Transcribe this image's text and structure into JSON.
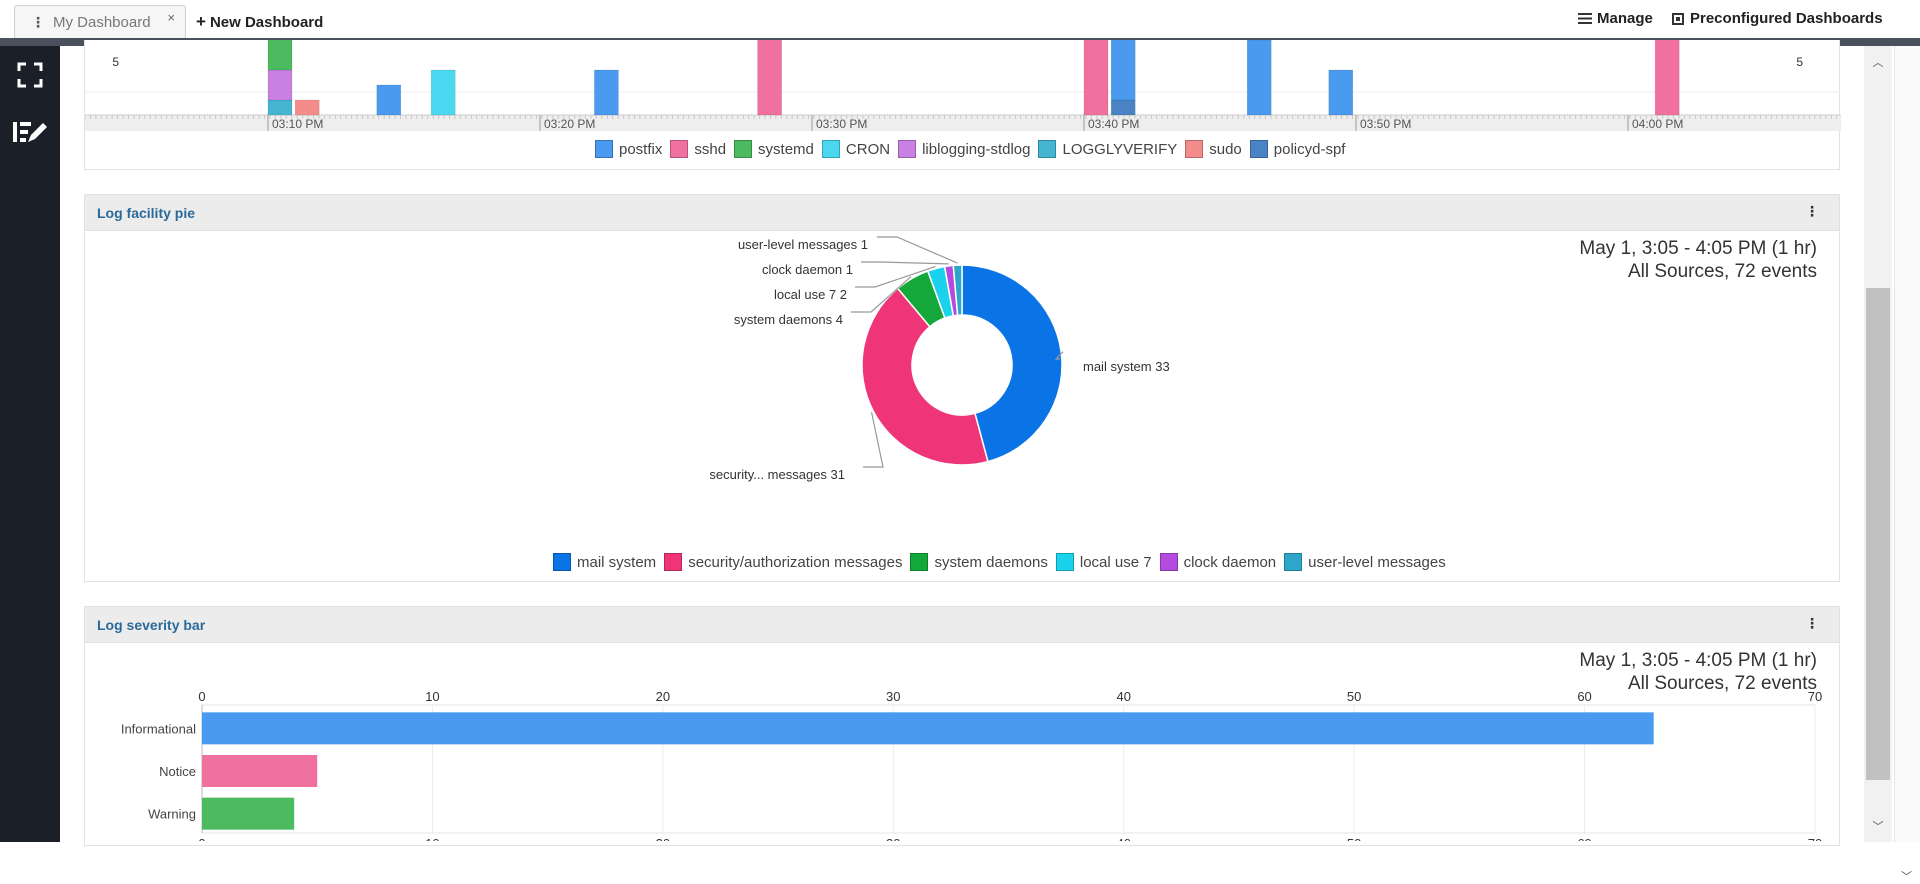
{
  "tabs": {
    "my_dashboard": "My Dashboard",
    "close_glyph": "×",
    "new_dashboard": "New Dashboard",
    "new_plus": "+"
  },
  "header": {
    "manage": "Manage",
    "preconfigured": "Preconfigured Dashboards"
  },
  "sidebar": {
    "items": [
      {
        "icon": "fullscreen-icon"
      },
      {
        "icon": "edit-dashboard-icon"
      }
    ]
  },
  "colors": {
    "postfix": "#4a9af0",
    "sshd": "#f0709f",
    "systemd": "#4cbb5f",
    "CRON": "#49d8ef",
    "liblogging-stdlog": "#c880e2",
    "LOGGLYVERIFY": "#45b5d2",
    "sudo": "#f58c8c",
    "policyd-spf": "#4a83c4",
    "mail": "#0a74e6",
    "security": "#ef3577",
    "sysd": "#14a83a",
    "local7": "#1ad2eb",
    "clock": "#b44bde",
    "user": "#2da6c9"
  },
  "timeline_panel": {
    "y_tick_left": "5",
    "y_tick_right": "5",
    "x_ticks": [
      "03:10 PM",
      "03:20 PM",
      "03:30 PM",
      "03:40 PM",
      "03:50 PM",
      "04:00 PM"
    ],
    "legend": [
      "postfix",
      "sshd",
      "systemd",
      "CRON",
      "liblogging-stdlog",
      "LOGGLYVERIFY",
      "sudo",
      "policyd-spf"
    ]
  },
  "pie_panel": {
    "title": "Log facility pie",
    "meta_line1": "May 1, 3:05 - 4:05 PM  (1 hr)",
    "meta_line2": "All Sources, 72 events",
    "labels": {
      "mail": "mail system 33",
      "security": "security... messages 31",
      "sysd": "system daemons 4",
      "local7": "local use 7 2",
      "clock": "clock daemon 1",
      "user": "user-level messages 1"
    },
    "legend": [
      "mail system",
      "security/authorization messages",
      "system daemons",
      "local use 7",
      "clock daemon",
      "user-level messages"
    ]
  },
  "bar_panel": {
    "title": "Log severity bar",
    "meta_line1": "May 1, 3:05 - 4:05 PM  (1 hr)",
    "meta_line2": "All Sources, 72 events"
  },
  "chart_data": [
    {
      "type": "bar",
      "stacked": true,
      "x_ticks": [
        "03:10 PM",
        "03:20 PM",
        "03:30 PM",
        "03:40 PM",
        "03:50 PM",
        "04:00 PM"
      ],
      "y_visible_tick": 5,
      "series": [
        {
          "name": "postfix",
          "points": [
            {
              "x": "03:14 PM",
              "y": 2
            },
            {
              "x": "03:22 PM",
              "y": 3
            },
            {
              "x": "03:41 PM",
              "y": 7
            },
            {
              "x": "03:46 PM",
              "y": 5
            },
            {
              "x": "03:49 PM",
              "y": 3
            }
          ]
        },
        {
          "name": "sshd",
          "points": [
            {
              "x": "03:28 PM",
              "y": 9
            },
            {
              "x": "03:40 PM",
              "y": 9
            },
            {
              "x": "03:41 PM",
              "y": 9
            },
            {
              "x": "04:01 PM",
              "y": 9
            }
          ]
        },
        {
          "name": "systemd",
          "points": [
            {
              "x": "03:10 PM",
              "y": 4
            }
          ]
        },
        {
          "name": "CRON",
          "points": [
            {
              "x": "03:16 PM",
              "y": 3
            }
          ]
        },
        {
          "name": "liblogging-stdlog",
          "points": [
            {
              "x": "03:10 PM",
              "y": 2
            }
          ]
        },
        {
          "name": "LOGGLYVERIFY",
          "points": [
            {
              "x": "03:10 PM",
              "y": 1
            }
          ]
        },
        {
          "name": "sudo",
          "points": [
            {
              "x": "03:11 PM",
              "y": 1
            }
          ]
        },
        {
          "name": "policyd-spf",
          "points": [
            {
              "x": "03:41 PM",
              "y": 1
            }
          ]
        }
      ],
      "legend": "bottom",
      "grid": true
    },
    {
      "type": "pie",
      "donut": true,
      "title": "Log facility pie",
      "slices": [
        {
          "name": "mail system",
          "value": 33
        },
        {
          "name": "security/authorization messages",
          "value": 31
        },
        {
          "name": "system daemons",
          "value": 4
        },
        {
          "name": "local use 7",
          "value": 2
        },
        {
          "name": "clock daemon",
          "value": 1
        },
        {
          "name": "user-level messages",
          "value": 1
        }
      ],
      "legend": "bottom"
    },
    {
      "type": "bar",
      "orientation": "horizontal",
      "title": "Log severity bar",
      "categories": [
        "Informational",
        "Notice",
        "Warning"
      ],
      "values": [
        63,
        5,
        4
      ],
      "xlim": [
        0,
        70
      ],
      "x_ticks": [
        0,
        10,
        20,
        30,
        40,
        50,
        60,
        70
      ],
      "grid": true
    }
  ]
}
